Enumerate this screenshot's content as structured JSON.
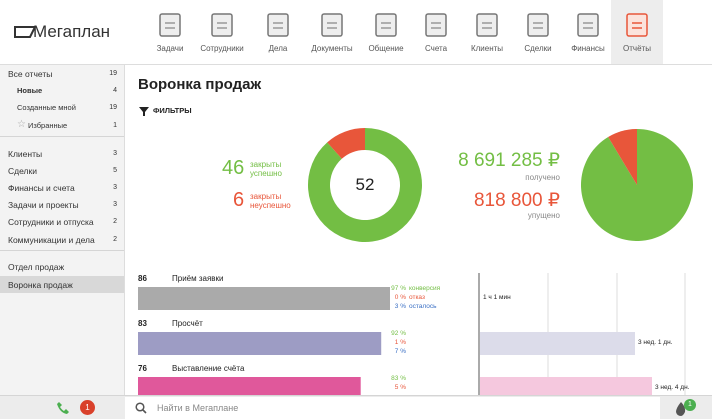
{
  "header": {
    "logo": "Мегаплан",
    "nav": [
      "Задачи",
      "Сотрудники",
      "Дела",
      "Документы",
      "Общение",
      "Счета",
      "Клиенты",
      "Сделки",
      "Финансы",
      "Отчёты"
    ]
  },
  "sidebar": {
    "groups": [
      [
        {
          "label": "Все отчеты",
          "count": "19"
        },
        {
          "label": "Новые",
          "count": "4"
        },
        {
          "label": "Созданные мной",
          "count": "19"
        },
        {
          "label": "Избранные",
          "count": "1"
        }
      ],
      [
        {
          "label": "Клиенты",
          "count": "3"
        },
        {
          "label": "Сделки",
          "count": "5"
        },
        {
          "label": "Финансы и счета",
          "count": "3"
        },
        {
          "label": "Задачи и проекты",
          "count": "3"
        },
        {
          "label": "Сотрудники и отпуска",
          "count": "2"
        },
        {
          "label": "Коммуникации и дела",
          "count": "2"
        }
      ],
      [
        {
          "label": "Отдел продаж"
        },
        {
          "label": "Воронка продаж"
        }
      ]
    ]
  },
  "main": {
    "title": "Воронка продаж",
    "filters": "ФИЛЬТРЫ",
    "deals": {
      "won": {
        "count": 46,
        "label": "закрыты успешно"
      },
      "lost": {
        "count": 6,
        "label": "закрыты неуспешно"
      },
      "total": 52
    },
    "money": {
      "received": {
        "value": 8691285,
        "label": "8 691 285 ₽",
        "caption": "получено"
      },
      "missed": {
        "value": 818800,
        "label": "818 800 ₽",
        "caption": "упущено"
      }
    },
    "stages": [
      {
        "count": 86,
        "name": "Приём заявки",
        "rates": [
          {
            "value": "97 %",
            "label": "конверсия"
          },
          {
            "value": "0 %",
            "label": "отказ"
          },
          {
            "value": "3 %",
            "label": "осталось"
          }
        ],
        "time": "1 ч 1 мин"
      },
      {
        "count": 83,
        "name": "Просчёт",
        "rates": [
          {
            "value": "92 %"
          },
          {
            "value": "1 %"
          },
          {
            "value": "7 %"
          }
        ],
        "time": "3 нед. 1 дн."
      },
      {
        "count": 76,
        "name": "Выставление счёта",
        "rates": [
          {
            "value": "83 %"
          },
          {
            "value": "5 %"
          }
        ],
        "time": "3 нед. 4 дн."
      }
    ]
  },
  "bottom": {
    "missed_calls": "1",
    "search_placeholder": "Найти в Мегаплане",
    "notifications": "1"
  }
}
